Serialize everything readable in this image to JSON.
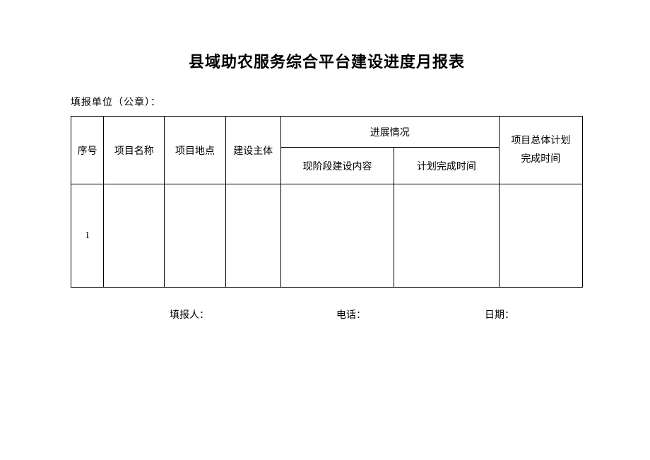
{
  "title": "县域助农服务综合平台建设进度月报表",
  "subtitle": "填报单位（公章）：",
  "table": {
    "columns": {
      "seq": "序号",
      "name": "项目名称",
      "location": "项目地点",
      "subject": "建设主体",
      "progress_group": "进展情况",
      "progress_content": "现阶段建设内容",
      "progress_plan": "计划完成时间",
      "total_plan_line1": "项目总体计划",
      "total_plan_line2": "完成时间"
    },
    "rows": [
      {
        "seq": "1",
        "name": "",
        "location": "",
        "subject": "",
        "progress_content": "",
        "progress_plan": "",
        "total_plan": ""
      }
    ]
  },
  "footer": {
    "reporter": "填报人：",
    "phone": "电话：",
    "date": "日期："
  }
}
